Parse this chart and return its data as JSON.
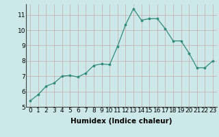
{
  "x": [
    0,
    1,
    2,
    3,
    4,
    5,
    6,
    7,
    8,
    9,
    10,
    11,
    12,
    13,
    14,
    15,
    16,
    17,
    18,
    19,
    20,
    21,
    22,
    23
  ],
  "y": [
    5.4,
    5.8,
    6.35,
    6.55,
    7.0,
    7.05,
    6.95,
    7.2,
    7.7,
    7.8,
    7.75,
    8.95,
    10.35,
    11.4,
    10.65,
    10.75,
    10.75,
    10.1,
    9.3,
    9.3,
    8.5,
    7.55,
    7.55,
    8.0
  ],
  "xlim": [
    -0.5,
    23.5
  ],
  "ylim": [
    5,
    11.7
  ],
  "yticks": [
    5,
    6,
    7,
    8,
    9,
    10,
    11
  ],
  "xticks": [
    0,
    1,
    2,
    3,
    4,
    5,
    6,
    7,
    8,
    9,
    10,
    11,
    12,
    13,
    14,
    15,
    16,
    17,
    18,
    19,
    20,
    21,
    22,
    23
  ],
  "xlabel": "Humidex (Indice chaleur)",
  "line_color": "#2e8b7a",
  "marker_color": "#2e8b7a",
  "bg_color": "#cce8e8",
  "grid_color_major": "#c8a8a8",
  "grid_color_minor": "#c8a8a8",
  "tick_fontsize": 6.5,
  "xlabel_fontsize": 7.5
}
